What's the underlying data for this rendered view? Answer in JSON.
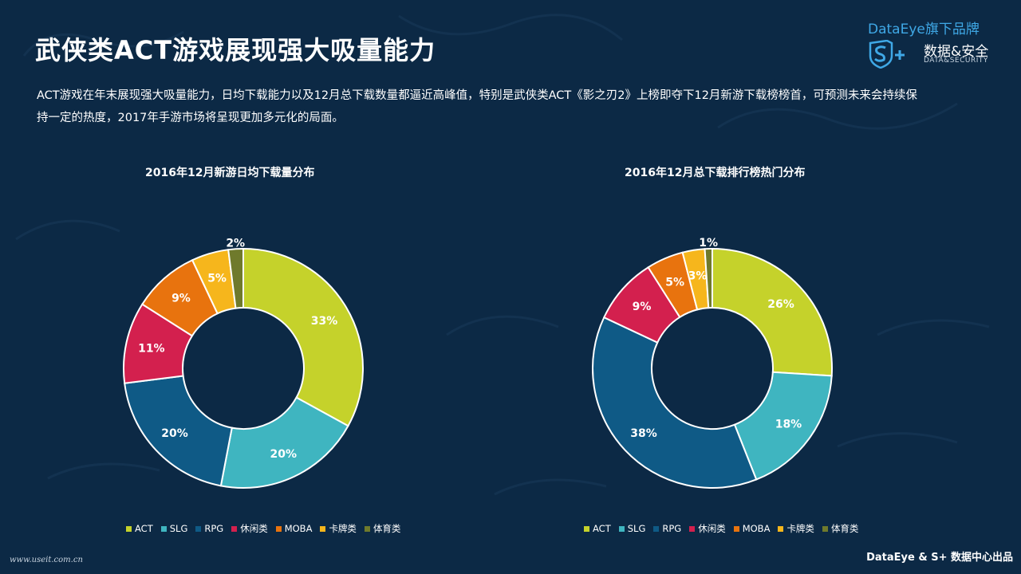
{
  "header": {
    "title": "武侠类ACT游戏展现强大吸量能力",
    "description": "ACT游戏在年末展现强大吸量能力，日均下载能力以及12月总下载数量都逼近高峰值，特别是武侠类ACT《影之刃2》上榜即夺下12月新游下载榜榜首，可预测未来会持续保持一定的热度，2017年手游市场将呈现更加多元化的局面。"
  },
  "brand": {
    "top": "DataEye旗下品牌",
    "cn": "数据&安全",
    "en": "DATA&SECURITY",
    "logo_icon": "shield-s-plus-logo"
  },
  "footer": {
    "source": "DataEye & S+ 数据中心出品",
    "watermark": "www.useit.com.cn"
  },
  "chart_data": [
    {
      "type": "pie",
      "title": "2016年12月新游日均下载量分布",
      "categories": [
        "ACT",
        "SLG",
        "RPG",
        "休闲类",
        "MOBA",
        "卡牌类",
        "体育类"
      ],
      "values": [
        33,
        20,
        20,
        11,
        9,
        5,
        2
      ],
      "value_labels": [
        "33%",
        "20%",
        "20%",
        "11%",
        "9%",
        "5%",
        "2%"
      ],
      "colors": [
        "#c5d22b",
        "#3fb5c0",
        "#0f5a86",
        "#d3204e",
        "#e8730e",
        "#f6b61c",
        "#6f7a2c"
      ],
      "legend": "bottom"
    },
    {
      "type": "pie",
      "title": "2016年12月总下载排行榜热门分布",
      "categories": [
        "ACT",
        "SLG",
        "RPG",
        "休闲类",
        "MOBA",
        "卡牌类",
        "体育类"
      ],
      "values": [
        26,
        18,
        38,
        9,
        5,
        3,
        1
      ],
      "value_labels": [
        "26%",
        "18%",
        "38%",
        "9%",
        "5%",
        "3%",
        "1%"
      ],
      "colors": [
        "#c5d22b",
        "#3fb5c0",
        "#0f5a86",
        "#d3204e",
        "#e8730e",
        "#f6b61c",
        "#6f7a2c"
      ],
      "legend": "bottom"
    }
  ]
}
